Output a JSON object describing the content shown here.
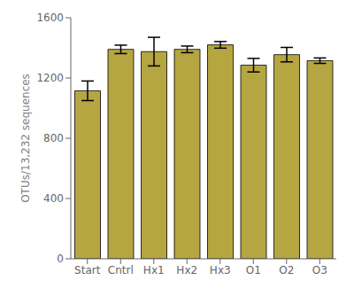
{
  "chart_data": {
    "type": "bar",
    "categories": [
      "Start",
      "Cntrl",
      "Hx1",
      "Hx2",
      "Hx3",
      "O1",
      "O2",
      "O3"
    ],
    "values": [
      1115,
      1390,
      1375,
      1390,
      1420,
      1285,
      1355,
      1315
    ],
    "errors": [
      65,
      28,
      95,
      22,
      22,
      45,
      48,
      18
    ],
    "color": "#b5a642",
    "ylabel": "OTUs/13,232 sequences",
    "ylim": [
      0,
      1600
    ],
    "yticks": [
      0,
      400,
      800,
      1200,
      1600
    ],
    "grid": false
  }
}
